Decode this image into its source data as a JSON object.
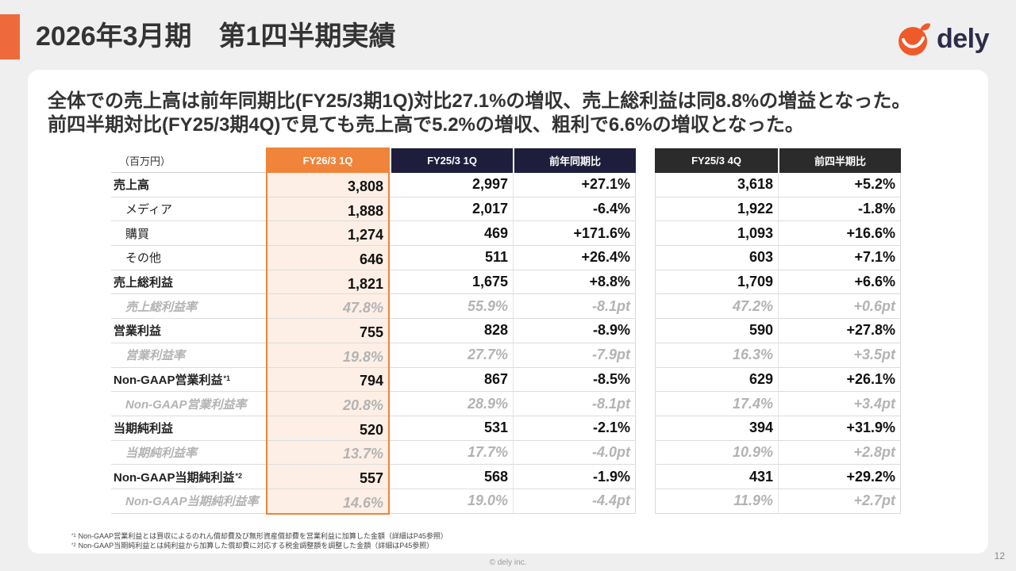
{
  "slide": {
    "title": "2026年3月期　第1四半期実績",
    "logo": {
      "text": "dely",
      "icon": "dely-logo-icon"
    },
    "headline": [
      "全体での売上高は前年同期比(FY25/3期1Q)対比27.1%の増収、売上総利益は同8.8%の増益となった。",
      "前四半期対比(FY25/3期4Q)で見ても売上高で5.2%の増収、粗利で6.6%の増収となった。"
    ],
    "footnotes": [
      {
        "marker": "*1",
        "text": "Non-GAAP営業利益とは買収によるのれん償却費及び無形資産償却費を営業利益に加算した金額（詳細はP45参照）"
      },
      {
        "marker": "*2",
        "text": "Non-GAAP当期純利益とは純利益から加算した償却費に対応する税金調整額を調整した金額（詳細はP45参照）"
      }
    ],
    "copyright": "© dely inc.",
    "page_number": "12"
  },
  "table": {
    "unit": "（百万円）",
    "columns": [
      "FY26/3 1Q",
      "FY25/3 1Q",
      "前年同期比",
      "FY25/3 4Q",
      "前四半期比"
    ],
    "rows": [
      {
        "label": "売上高",
        "values": [
          "3,808",
          "2,997",
          "+27.1%",
          "3,618",
          "+5.2%"
        ]
      },
      {
        "label": "メディア",
        "values": [
          "1,888",
          "2,017",
          "-6.4%",
          "1,922",
          "-1.8%"
        ]
      },
      {
        "label": "購買",
        "values": [
          "1,274",
          "469",
          "+171.6%",
          "1,093",
          "+16.6%"
        ]
      },
      {
        "label": "その他",
        "values": [
          "646",
          "511",
          "+26.4%",
          "603",
          "+7.1%"
        ]
      },
      {
        "label": "売上総利益",
        "values": [
          "1,821",
          "1,675",
          "+8.8%",
          "1,709",
          "+6.6%"
        ]
      },
      {
        "label": "売上総利益率",
        "values": [
          "47.8%",
          "55.9%",
          "-8.1pt",
          "47.2%",
          "+0.6pt"
        ]
      },
      {
        "label": "営業利益",
        "values": [
          "755",
          "828",
          "-8.9%",
          "590",
          "+27.8%"
        ]
      },
      {
        "label": "営業利益率",
        "values": [
          "19.8%",
          "27.7%",
          "-7.9pt",
          "16.3%",
          "+3.5pt"
        ]
      },
      {
        "label": "Non-GAAP営業利益",
        "note": "*1",
        "values": [
          "794",
          "867",
          "-8.5%",
          "629",
          "+26.1%"
        ]
      },
      {
        "label": "Non-GAAP営業利益率",
        "values": [
          "20.8%",
          "28.9%",
          "-8.1pt",
          "17.4%",
          "+3.4pt"
        ]
      },
      {
        "label": "当期純利益",
        "values": [
          "520",
          "531",
          "-2.1%",
          "394",
          "+31.9%"
        ]
      },
      {
        "label": "当期純利益率",
        "values": [
          "13.7%",
          "17.7%",
          "-4.0pt",
          "10.9%",
          "+2.8pt"
        ]
      },
      {
        "label": "Non-GAAP当期純利益",
        "note": "*2",
        "values": [
          "557",
          "568",
          "-1.9%",
          "431",
          "+29.2%"
        ]
      },
      {
        "label": "Non-GAAP当期純利益率",
        "values": [
          "14.6%",
          "19.0%",
          "-4.4pt",
          "11.9%",
          "+2.7pt"
        ]
      }
    ]
  },
  "colors": {
    "accent": "#ef6a3b",
    "logo_mark": "#f05a28",
    "logo_text": "#2d2d4a",
    "current_period": "#f0843a",
    "current_period_bg": "#fdefe5",
    "prior_year": "#1e1e3c",
    "prior_quarter": "#2b2b2b",
    "rate_text": "#b3b3b3"
  }
}
